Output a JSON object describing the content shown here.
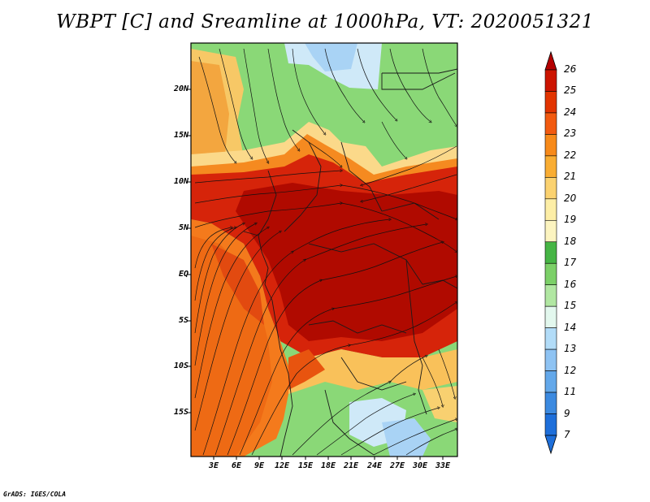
{
  "title": "WBPT [C] and Sreamline at 1000hPa, VT: 2020051321",
  "credit": "GrADS: IGES/COLA",
  "map": {
    "lat_labels": [
      "20N",
      "15N",
      "10N",
      "5N",
      "EQ",
      "5S",
      "10S",
      "15S"
    ],
    "lon_labels": [
      "3E",
      "6E",
      "9E",
      "12E",
      "15E",
      "18E",
      "21E",
      "24E",
      "27E",
      "30E",
      "33E"
    ]
  },
  "colorbar": {
    "labels": [
      "26",
      "25",
      "24",
      "23",
      "22",
      "21",
      "20",
      "19",
      "18",
      "17",
      "16",
      "15",
      "14",
      "13",
      "12",
      "11",
      "9",
      "7"
    ],
    "colors": [
      "#b40000",
      "#cc1400",
      "#e23400",
      "#f25a10",
      "#f78a1a",
      "#f9ad33",
      "#fbd270",
      "#fdeea6",
      "#fcf4c0",
      "#46b545",
      "#7cd068",
      "#b1e7a2",
      "#e3f8ee",
      "#b2dcf8",
      "#8ec3f3",
      "#63a8ea",
      "#3c8ae0",
      "#1e6fda"
    ]
  }
}
